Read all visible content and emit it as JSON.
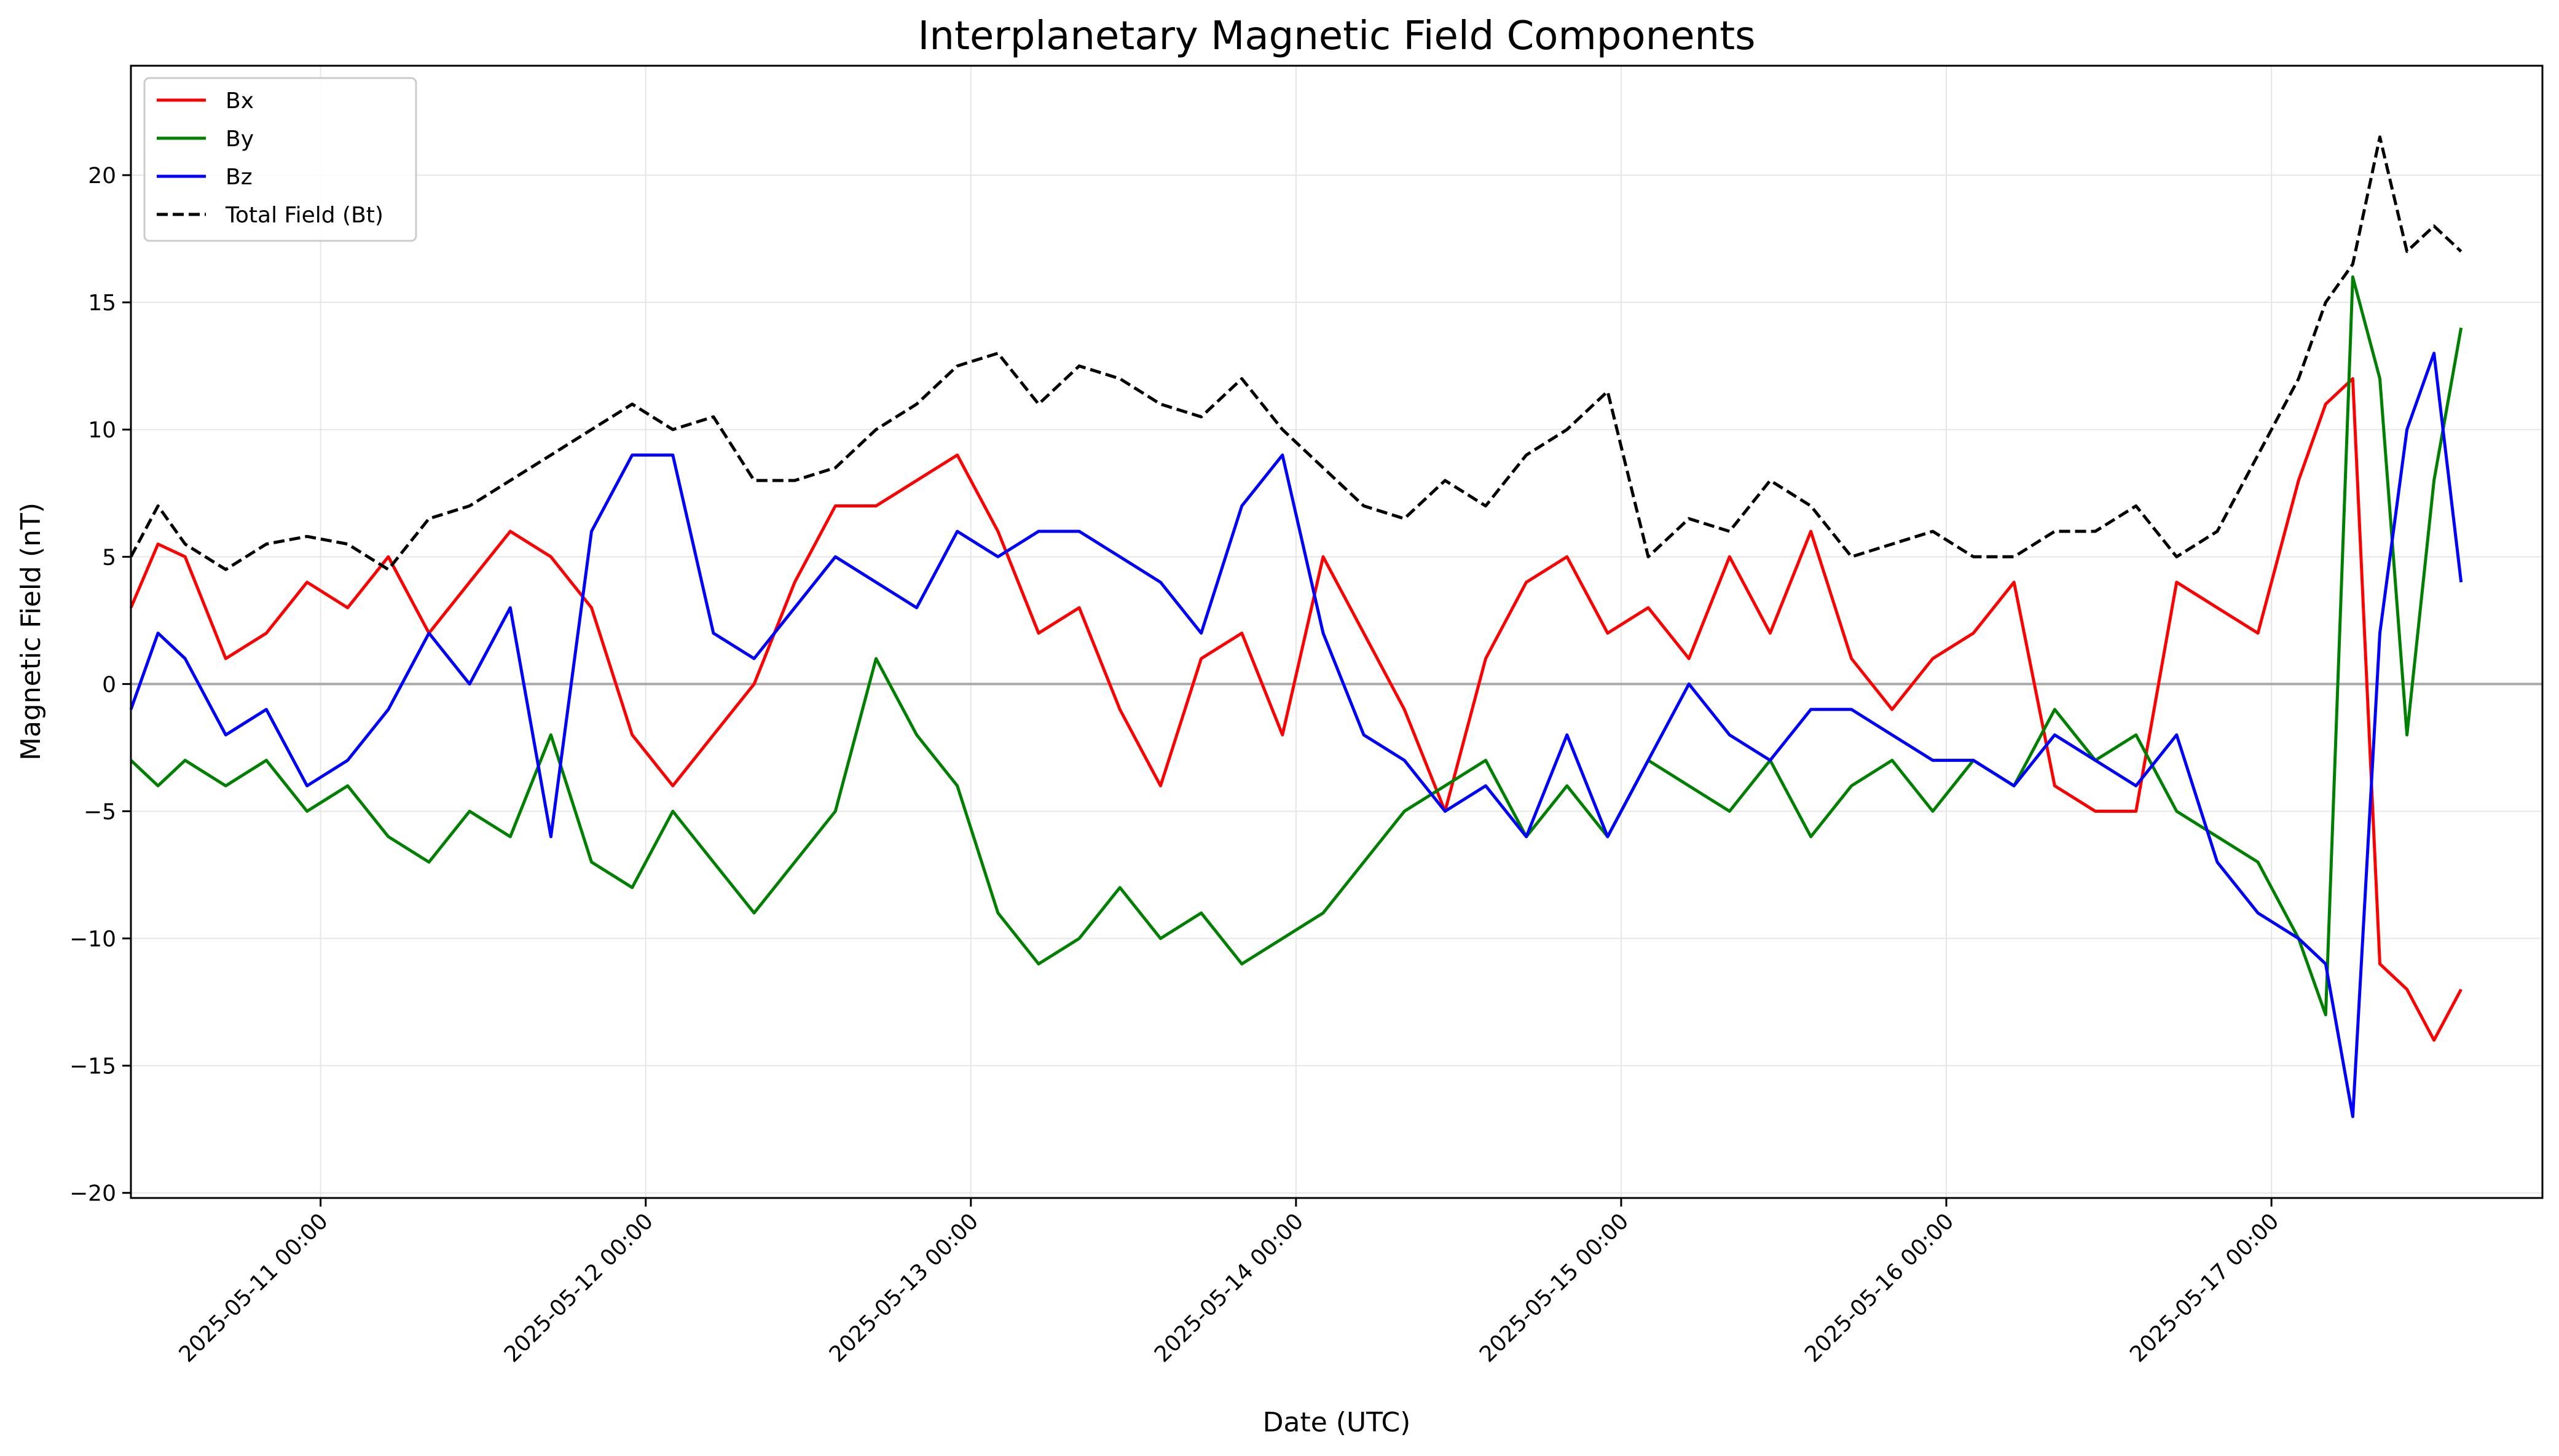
{
  "chart_data": {
    "type": "line",
    "title": "Interplanetary Magnetic Field Components",
    "xlabel": "Date (UTC)",
    "ylabel": "Magnetic Field (nT)",
    "xlim": [
      "2025-05-10 10:00",
      "2025-05-17 20:00"
    ],
    "ylim": [
      -20.2,
      24.3
    ],
    "grid": true,
    "legend_position": "upper-left",
    "zero_line": {
      "y": 0,
      "color": "#a9a9a9"
    },
    "xticks": [
      {
        "date": "2025-05-11 00:00",
        "label": "2025-05-11 00:00"
      },
      {
        "date": "2025-05-12 00:00",
        "label": "2025-05-12 00:00"
      },
      {
        "date": "2025-05-13 00:00",
        "label": "2025-05-13 00:00"
      },
      {
        "date": "2025-05-14 00:00",
        "label": "2025-05-14 00:00"
      },
      {
        "date": "2025-05-15 00:00",
        "label": "2025-05-15 00:00"
      },
      {
        "date": "2025-05-16 00:00",
        "label": "2025-05-16 00:00"
      },
      {
        "date": "2025-05-17 00:00",
        "label": "2025-05-17 00:00"
      }
    ],
    "yticks": [
      {
        "value": -20,
        "label": "−20"
      },
      {
        "value": -15,
        "label": "−15"
      },
      {
        "value": -10,
        "label": "−10"
      },
      {
        "value": -5,
        "label": "−5"
      },
      {
        "value": 0,
        "label": "0"
      },
      {
        "value": 5,
        "label": "5"
      },
      {
        "value": 10,
        "label": "10"
      },
      {
        "value": 15,
        "label": "15"
      },
      {
        "value": 20,
        "label": "20"
      }
    ],
    "series": [
      {
        "name": "Bx",
        "color": "#ff0000",
        "dash": "solid",
        "x": [
          "2025-05-10 10:00",
          "2025-05-10 12:00",
          "2025-05-10 14:00",
          "2025-05-10 17:00",
          "2025-05-10 20:00",
          "2025-05-10 23:00",
          "2025-05-11 02:00",
          "2025-05-11 05:00",
          "2025-05-11 08:00",
          "2025-05-11 11:00",
          "2025-05-11 14:00",
          "2025-05-11 17:00",
          "2025-05-11 20:00",
          "2025-05-11 23:00",
          "2025-05-12 02:00",
          "2025-05-12 05:00",
          "2025-05-12 08:00",
          "2025-05-12 11:00",
          "2025-05-12 14:00",
          "2025-05-12 17:00",
          "2025-05-12 20:00",
          "2025-05-12 23:00",
          "2025-05-13 02:00",
          "2025-05-13 05:00",
          "2025-05-13 08:00",
          "2025-05-13 11:00",
          "2025-05-13 14:00",
          "2025-05-13 17:00",
          "2025-05-13 20:00",
          "2025-05-13 23:00",
          "2025-05-14 02:00",
          "2025-05-14 05:00",
          "2025-05-14 08:00",
          "2025-05-14 11:00",
          "2025-05-14 14:00",
          "2025-05-14 17:00",
          "2025-05-14 20:00",
          "2025-05-14 23:00",
          "2025-05-15 02:00",
          "2025-05-15 05:00",
          "2025-05-15 08:00",
          "2025-05-15 11:00",
          "2025-05-15 14:00",
          "2025-05-15 17:00",
          "2025-05-15 20:00",
          "2025-05-15 23:00",
          "2025-05-16 02:00",
          "2025-05-16 05:00",
          "2025-05-16 08:00",
          "2025-05-16 11:00",
          "2025-05-16 14:00",
          "2025-05-16 17:00",
          "2025-05-16 20:00",
          "2025-05-16 23:00",
          "2025-05-17 02:00",
          "2025-05-17 04:00",
          "2025-05-17 06:00",
          "2025-05-17 08:00",
          "2025-05-17 10:00",
          "2025-05-17 12:00",
          "2025-05-17 14:00"
        ],
        "y": [
          3,
          5.5,
          5,
          1,
          2,
          4,
          3,
          5,
          2,
          4,
          6,
          5,
          3,
          -2,
          -4,
          -2,
          0,
          4,
          7,
          7,
          8,
          9,
          6,
          2,
          3,
          -1,
          -4,
          1,
          2,
          -2,
          5,
          2,
          -1,
          -5,
          1,
          4,
          5,
          2,
          3,
          1,
          5,
          2,
          6,
          1,
          -1,
          1,
          2,
          4,
          -4,
          -5,
          -5,
          4,
          3,
          2,
          8,
          11,
          12,
          -11,
          -12,
          -14,
          -12
        ]
      },
      {
        "name": "By",
        "color": "#008000",
        "dash": "solid",
        "x": [
          "2025-05-10 10:00",
          "2025-05-10 12:00",
          "2025-05-10 14:00",
          "2025-05-10 17:00",
          "2025-05-10 20:00",
          "2025-05-10 23:00",
          "2025-05-11 02:00",
          "2025-05-11 05:00",
          "2025-05-11 08:00",
          "2025-05-11 11:00",
          "2025-05-11 14:00",
          "2025-05-11 17:00",
          "2025-05-11 20:00",
          "2025-05-11 23:00",
          "2025-05-12 02:00",
          "2025-05-12 05:00",
          "2025-05-12 08:00",
          "2025-05-12 11:00",
          "2025-05-12 14:00",
          "2025-05-12 17:00",
          "2025-05-12 20:00",
          "2025-05-12 23:00",
          "2025-05-13 02:00",
          "2025-05-13 05:00",
          "2025-05-13 08:00",
          "2025-05-13 11:00",
          "2025-05-13 14:00",
          "2025-05-13 17:00",
          "2025-05-13 20:00",
          "2025-05-13 23:00",
          "2025-05-14 02:00",
          "2025-05-14 05:00",
          "2025-05-14 08:00",
          "2025-05-14 11:00",
          "2025-05-14 14:00",
          "2025-05-14 17:00",
          "2025-05-14 20:00",
          "2025-05-14 23:00",
          "2025-05-15 02:00",
          "2025-05-15 05:00",
          "2025-05-15 08:00",
          "2025-05-15 11:00",
          "2025-05-15 14:00",
          "2025-05-15 17:00",
          "2025-05-15 20:00",
          "2025-05-15 23:00",
          "2025-05-16 02:00",
          "2025-05-16 05:00",
          "2025-05-16 08:00",
          "2025-05-16 11:00",
          "2025-05-16 14:00",
          "2025-05-16 17:00",
          "2025-05-16 20:00",
          "2025-05-16 23:00",
          "2025-05-17 02:00",
          "2025-05-17 04:00",
          "2025-05-17 06:00",
          "2025-05-17 08:00",
          "2025-05-17 10:00",
          "2025-05-17 12:00",
          "2025-05-17 14:00"
        ],
        "y": [
          -3,
          -4,
          -3,
          -4,
          -3,
          -5,
          -4,
          -6,
          -7,
          -5,
          -6,
          -2,
          -7,
          -8,
          -5,
          -7,
          -9,
          -7,
          -5,
          1,
          -2,
          -4,
          -9,
          -11,
          -10,
          -8,
          -10,
          -9,
          -11,
          -10,
          -9,
          -7,
          -5,
          -4,
          -3,
          -6,
          -4,
          -6,
          -3,
          -4,
          -5,
          -3,
          -6,
          -4,
          -3,
          -5,
          -3,
          -4,
          -1,
          -3,
          -2,
          -5,
          -6,
          -7,
          -10,
          -13,
          16,
          12,
          -2,
          8,
          14
        ]
      },
      {
        "name": "Bz",
        "color": "#0000ff",
        "dash": "solid",
        "x": [
          "2025-05-10 10:00",
          "2025-05-10 12:00",
          "2025-05-10 14:00",
          "2025-05-10 17:00",
          "2025-05-10 20:00",
          "2025-05-10 23:00",
          "2025-05-11 02:00",
          "2025-05-11 05:00",
          "2025-05-11 08:00",
          "2025-05-11 11:00",
          "2025-05-11 14:00",
          "2025-05-11 17:00",
          "2025-05-11 20:00",
          "2025-05-11 23:00",
          "2025-05-12 02:00",
          "2025-05-12 05:00",
          "2025-05-12 08:00",
          "2025-05-12 11:00",
          "2025-05-12 14:00",
          "2025-05-12 17:00",
          "2025-05-12 20:00",
          "2025-05-12 23:00",
          "2025-05-13 02:00",
          "2025-05-13 05:00",
          "2025-05-13 08:00",
          "2025-05-13 11:00",
          "2025-05-13 14:00",
          "2025-05-13 17:00",
          "2025-05-13 20:00",
          "2025-05-13 23:00",
          "2025-05-14 02:00",
          "2025-05-14 05:00",
          "2025-05-14 08:00",
          "2025-05-14 11:00",
          "2025-05-14 14:00",
          "2025-05-14 17:00",
          "2025-05-14 20:00",
          "2025-05-14 23:00",
          "2025-05-15 02:00",
          "2025-05-15 05:00",
          "2025-05-15 08:00",
          "2025-05-15 11:00",
          "2025-05-15 14:00",
          "2025-05-15 17:00",
          "2025-05-15 20:00",
          "2025-05-15 23:00",
          "2025-05-16 02:00",
          "2025-05-16 05:00",
          "2025-05-16 08:00",
          "2025-05-16 11:00",
          "2025-05-16 14:00",
          "2025-05-16 17:00",
          "2025-05-16 20:00",
          "2025-05-16 23:00",
          "2025-05-17 02:00",
          "2025-05-17 04:00",
          "2025-05-17 06:00",
          "2025-05-17 08:00",
          "2025-05-17 10:00",
          "2025-05-17 12:00",
          "2025-05-17 14:00"
        ],
        "y": [
          -1,
          2,
          1,
          -2,
          -1,
          -4,
          -3,
          -1,
          2,
          0,
          3,
          -6,
          6,
          9,
          9,
          2,
          1,
          3,
          5,
          4,
          3,
          6,
          5,
          6,
          6,
          5,
          4,
          2,
          7,
          9,
          2,
          -2,
          -3,
          -5,
          -4,
          -6,
          -2,
          -6,
          -3,
          0,
          -2,
          -3,
          -1,
          -1,
          -2,
          -3,
          -3,
          -4,
          -2,
          -3,
          -4,
          -2,
          -7,
          -9,
          -10,
          -11,
          -17,
          2,
          10,
          13,
          4
        ]
      },
      {
        "name": "Total Field (Bt)",
        "color": "#000000",
        "dash": "dashed",
        "x": [
          "2025-05-10 10:00",
          "2025-05-10 12:00",
          "2025-05-10 14:00",
          "2025-05-10 17:00",
          "2025-05-10 20:00",
          "2025-05-10 23:00",
          "2025-05-11 02:00",
          "2025-05-11 05:00",
          "2025-05-11 08:00",
          "2025-05-11 11:00",
          "2025-05-11 14:00",
          "2025-05-11 17:00",
          "2025-05-11 20:00",
          "2025-05-11 23:00",
          "2025-05-12 02:00",
          "2025-05-12 05:00",
          "2025-05-12 08:00",
          "2025-05-12 11:00",
          "2025-05-12 14:00",
          "2025-05-12 17:00",
          "2025-05-12 20:00",
          "2025-05-12 23:00",
          "2025-05-13 02:00",
          "2025-05-13 05:00",
          "2025-05-13 08:00",
          "2025-05-13 11:00",
          "2025-05-13 14:00",
          "2025-05-13 17:00",
          "2025-05-13 20:00",
          "2025-05-13 23:00",
          "2025-05-14 02:00",
          "2025-05-14 05:00",
          "2025-05-14 08:00",
          "2025-05-14 11:00",
          "2025-05-14 14:00",
          "2025-05-14 17:00",
          "2025-05-14 20:00",
          "2025-05-14 23:00",
          "2025-05-15 02:00",
          "2025-05-15 05:00",
          "2025-05-15 08:00",
          "2025-05-15 11:00",
          "2025-05-15 14:00",
          "2025-05-15 17:00",
          "2025-05-15 20:00",
          "2025-05-15 23:00",
          "2025-05-16 02:00",
          "2025-05-16 05:00",
          "2025-05-16 08:00",
          "2025-05-16 11:00",
          "2025-05-16 14:00",
          "2025-05-16 17:00",
          "2025-05-16 20:00",
          "2025-05-16 23:00",
          "2025-05-17 02:00",
          "2025-05-17 04:00",
          "2025-05-17 06:00",
          "2025-05-17 08:00",
          "2025-05-17 10:00",
          "2025-05-17 12:00",
          "2025-05-17 14:00"
        ],
        "y": [
          5,
          7,
          5.5,
          4.5,
          5.5,
          5.8,
          5.5,
          4.5,
          6.5,
          7,
          8,
          9,
          10,
          11,
          10,
          10.5,
          8,
          8,
          8.5,
          10,
          11,
          12.5,
          13,
          11,
          12.5,
          12,
          11,
          10.5,
          12,
          10,
          8.5,
          7,
          6.5,
          8,
          7,
          9,
          10,
          11.5,
          5,
          6.5,
          6,
          8,
          7,
          5,
          5.5,
          6,
          5,
          5,
          6,
          6,
          7,
          5,
          6,
          9,
          12,
          15,
          16.5,
          21.5,
          17,
          18,
          17
        ]
      }
    ]
  }
}
